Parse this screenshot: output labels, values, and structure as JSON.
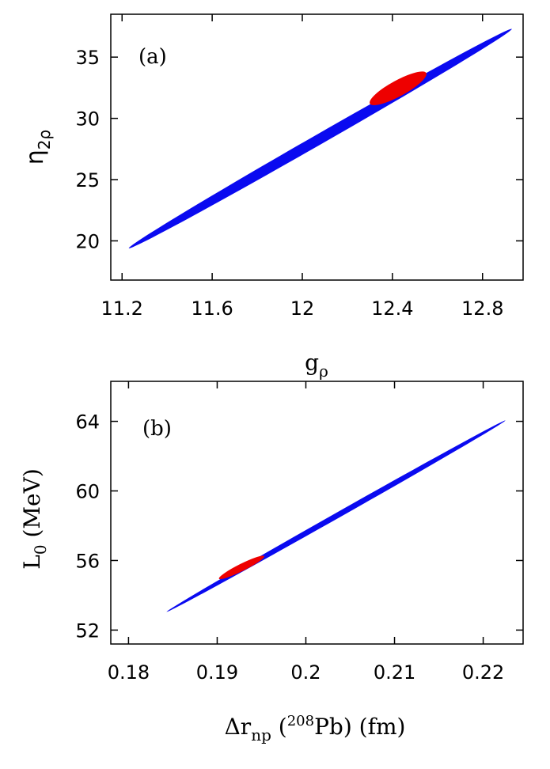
{
  "chart_data": [
    {
      "type": "scatter",
      "panel_label": "(a)",
      "xlabel": "g",
      "xlabel_sub": "ρ",
      "ylabel": "η",
      "ylabel_sub": "2ρ",
      "xlim": [
        11.15,
        12.98
      ],
      "ylim": [
        16.8,
        38.5
      ],
      "xticks": [
        11.2,
        11.6,
        12,
        12.4,
        12.8
      ],
      "xtick_labels": [
        "11.2",
        "11.6",
        "12",
        "12.4",
        "12.8"
      ],
      "yticks": [
        20,
        25,
        30,
        35
      ],
      "ytick_labels": [
        "20",
        "25",
        "30",
        "35"
      ],
      "regions": [
        {
          "color": "#0a0af0",
          "start": [
            11.23,
            19.4
          ],
          "end": [
            12.93,
            37.3
          ],
          "width": 0.85
        },
        {
          "color": "#ee0000",
          "start": [
            12.3,
            31.2
          ],
          "end": [
            12.55,
            33.7
          ],
          "width": 1.3
        }
      ]
    },
    {
      "type": "scatter",
      "panel_label": "(b)",
      "xlabel": "Δr",
      "xlabel_sub": "np",
      "xlabel_paren": " (",
      "xlabel_sup": "208",
      "xlabel_rest": "Pb) (fm)",
      "ylabel": "L",
      "ylabel_sub": "0",
      "ylabel_rest": " (MeV)",
      "xlim": [
        0.178,
        0.2245
      ],
      "ylim": [
        51.2,
        66.3
      ],
      "xticks": [
        0.18,
        0.19,
        0.2,
        0.21,
        0.22
      ],
      "xtick_labels": [
        "0.18",
        "0.19",
        "0.2",
        "0.21",
        "0.22"
      ],
      "yticks": [
        52,
        56,
        60,
        64
      ],
      "ytick_labels": [
        "52",
        "56",
        "60",
        "64"
      ],
      "regions": [
        {
          "color": "#0a0af0",
          "start": [
            0.1843,
            53.05
          ],
          "end": [
            0.2225,
            64.05
          ],
          "width": 0.32
        },
        {
          "color": "#ee0000",
          "start": [
            0.1902,
            54.95
          ],
          "end": [
            0.1953,
            56.25
          ],
          "width": 0.42
        }
      ]
    }
  ]
}
